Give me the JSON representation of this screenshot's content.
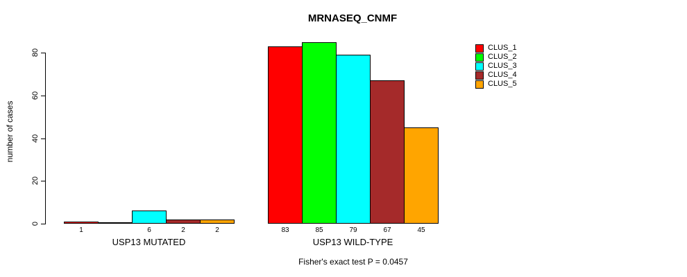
{
  "title": "MRNASEQ_CNMF",
  "y_axis": {
    "label": "number of cases",
    "tick_labels": [
      "0",
      "20",
      "40",
      "60",
      "80"
    ]
  },
  "caption": "Fisher's exact test P = 0.0457",
  "legend": {
    "entries": [
      {
        "label": "CLUS_1",
        "color": "#FF0000"
      },
      {
        "label": "CLUS_2",
        "color": "#00FF00"
      },
      {
        "label": "CLUS_3",
        "color": "#00FFFF"
      },
      {
        "label": "CLUS_4",
        "color": "#A52A2A"
      },
      {
        "label": "CLUS_5",
        "color": "#FFA500"
      }
    ]
  },
  "chart_data": {
    "type": "bar",
    "title": "MRNASEQ_CNMF",
    "ylabel": "number of cases",
    "ylim": [
      0,
      85
    ],
    "yticks": [
      0,
      20,
      40,
      60,
      80
    ],
    "grid": false,
    "legend_position": "right-outside",
    "categories": [
      "USP13 MUTATED",
      "USP13 WILD-TYPE"
    ],
    "series_names": [
      "CLUS_1",
      "CLUS_2",
      "CLUS_3",
      "CLUS_4",
      "CLUS_5"
    ],
    "series_colors": [
      "#FF0000",
      "#00FF00",
      "#00FFFF",
      "#A52A2A",
      "#FFA500"
    ],
    "series": [
      {
        "name": "CLUS_1",
        "values": [
          1,
          83
        ]
      },
      {
        "name": "CLUS_2",
        "values": [
          0,
          85
        ]
      },
      {
        "name": "CLUS_3",
        "values": [
          6,
          79
        ]
      },
      {
        "name": "CLUS_4",
        "values": [
          2,
          67
        ]
      },
      {
        "name": "CLUS_5",
        "values": [
          2,
          45
        ]
      }
    ],
    "bar_value_labels": [
      [
        "1",
        "",
        "6",
        "2",
        "2"
      ],
      [
        "83",
        "85",
        "79",
        "67",
        "45"
      ]
    ],
    "annotation": "Fisher's exact test P = 0.0457"
  }
}
